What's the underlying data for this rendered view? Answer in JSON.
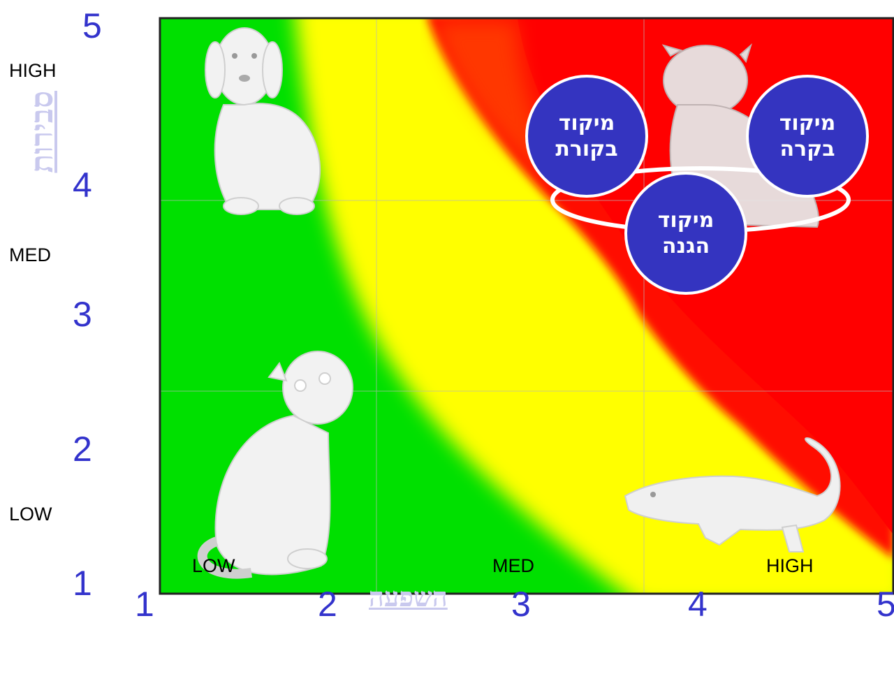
{
  "y_axis": {
    "title": "סבירות",
    "numbers": [
      "5",
      "4",
      "3",
      "2",
      "1"
    ],
    "levels": [
      "HIGH",
      "MED",
      "LOW"
    ]
  },
  "x_axis": {
    "title": "השפעה",
    "numbers": [
      "1",
      "2",
      "3",
      "4",
      "5"
    ],
    "levels": [
      "LOW",
      "MED",
      "HIGH"
    ]
  },
  "zones": {
    "low_color": "#00e000",
    "mid_color": "#ffff00",
    "high_color": "#ff0000"
  },
  "animals": [
    "dog-icon",
    "cat-icon",
    "tiger-icon",
    "crocodile-icon"
  ],
  "focus_bubbles": [
    {
      "line1": "מיקוד",
      "line2": "בקורת"
    },
    {
      "line1": "מיקוד",
      "line2": "בקרה"
    },
    {
      "line1": "מיקוד",
      "line2": "הגנה"
    }
  ]
}
